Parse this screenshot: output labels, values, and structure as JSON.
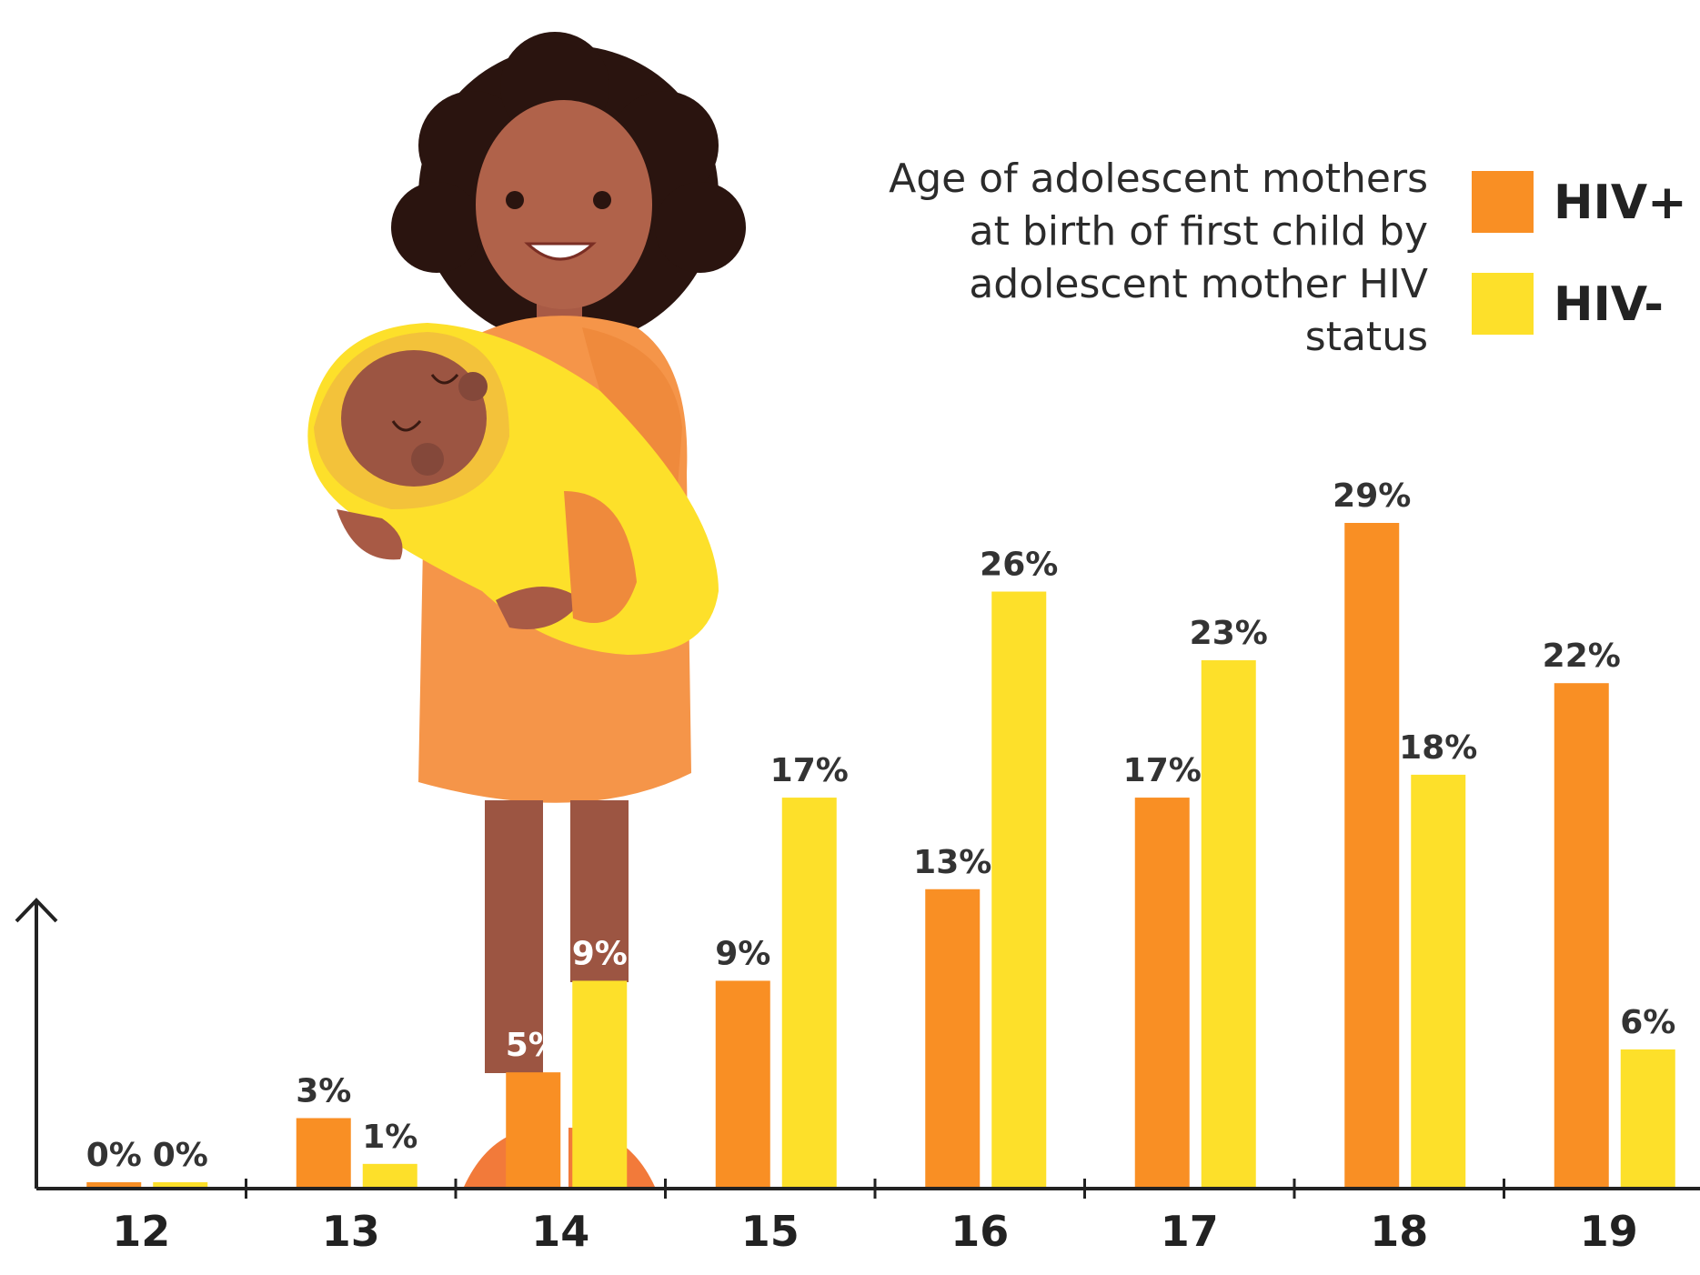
{
  "chart_data": {
    "type": "bar",
    "legend_title": "Age of adolescent mothers at birth of first child by adolescent mother HIV status",
    "categories": [
      "12",
      "13",
      "14",
      "15",
      "16",
      "17",
      "18",
      "19"
    ],
    "series": [
      {
        "name": "HIV+",
        "color": "#f98f24",
        "values": [
          0,
          3,
          5,
          9,
          13,
          17,
          29,
          22
        ],
        "labels": [
          "0%",
          "3%",
          "5%",
          "9%",
          "13%",
          "17%",
          "29%",
          "22%"
        ]
      },
      {
        "name": "HIV-",
        "color": "#fde02a",
        "values": [
          0,
          1,
          9,
          17,
          26,
          23,
          18,
          6
        ],
        "labels": [
          "0%",
          "1%",
          "9%",
          "17%",
          "26%",
          "23%",
          "18%",
          "6%"
        ]
      }
    ],
    "ylim": [
      0,
      30
    ],
    "grid": false,
    "legend_position": "top-right"
  }
}
